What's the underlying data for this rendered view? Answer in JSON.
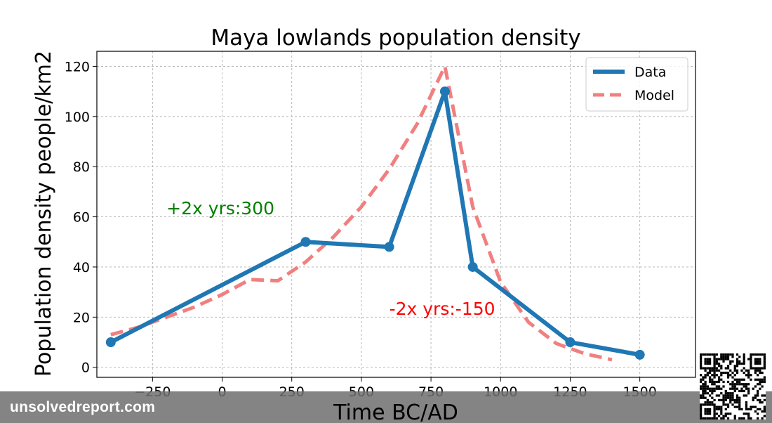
{
  "chart_data": {
    "type": "line",
    "title": "Maya lowlands population density",
    "xlabel": "Time BC/AD",
    "ylabel": "Population density people/km2",
    "xlim": [
      -450,
      1700
    ],
    "ylim": [
      -4,
      126
    ],
    "xticks": [
      -250,
      0,
      250,
      500,
      750,
      1000,
      1250,
      1500
    ],
    "xtick_labels": [
      "−250",
      "0",
      "250",
      "500",
      "750",
      "1000",
      "1250",
      "1500"
    ],
    "yticks": [
      0,
      20,
      40,
      60,
      80,
      100,
      120
    ],
    "ytick_labels": [
      "0",
      "20",
      "40",
      "60",
      "80",
      "100",
      "120"
    ],
    "grid": true,
    "legend_position": "top-right",
    "series": [
      {
        "name": "Data",
        "color": "#1f77b4",
        "style": "solid-with-markers",
        "x": [
          -400,
          300,
          600,
          800,
          900,
          1250,
          1500
        ],
        "y": [
          10,
          50,
          48,
          110,
          40,
          10,
          5
        ]
      },
      {
        "name": "Model",
        "color": "#f08080",
        "style": "dashed",
        "x": [
          -400,
          -300,
          -200,
          -100,
          0,
          100,
          200,
          300,
          400,
          500,
          600,
          700,
          800,
          900,
          1000,
          1100,
          1200,
          1300,
          1400
        ],
        "y": [
          13,
          16,
          20,
          24,
          29,
          35,
          34.5,
          42,
          52,
          64,
          79,
          97,
          120,
          64,
          34,
          18,
          9.5,
          5.5,
          3
        ]
      }
    ],
    "annotations": [
      {
        "text": "+2x yrs:300",
        "x": -200,
        "y": 61,
        "color": "#008000"
      },
      {
        "text": "-2x yrs:-150",
        "x": 600,
        "y": 21,
        "color": "#ff0000"
      }
    ]
  },
  "footer": {
    "site": "unsolvedreport.com"
  },
  "qr_code": {
    "icon": "qr-code-icon"
  }
}
